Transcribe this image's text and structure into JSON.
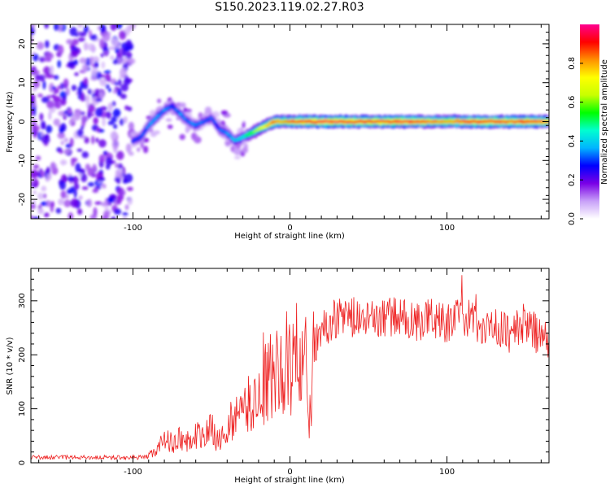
{
  "figure_title": "S150.2023.119.02.27.R03",
  "colors": {
    "snr_line": "#ee2222",
    "axes": "#000000"
  },
  "chart_data": [
    {
      "type": "heatmap",
      "title": "S150.2023.119.02.27.R03",
      "xlabel": "Height of straight line (km)",
      "ylabel": "Frequency (Hz)",
      "xlim": [
        -165,
        165
      ],
      "ylim": [
        -25,
        25
      ],
      "x_ticks": [
        -100,
        0,
        100
      ],
      "x_tick_labels": [
        "-100",
        "0",
        "100"
      ],
      "y_ticks": [
        -20,
        -10,
        0,
        10,
        20
      ],
      "y_tick_labels": [
        "-20",
        "-10",
        "0",
        "10",
        "20"
      ],
      "colorbar": {
        "label": "Normalized spectral amplitude",
        "range": [
          0,
          1
        ],
        "ticks": [
          0.0,
          0.2,
          0.4,
          0.6,
          0.8
        ],
        "tick_labels": [
          "0.0",
          "0.2",
          "0.4",
          "0.6",
          "0.8"
        ],
        "colormap": [
          "#ffffff",
          "#c8a0f8",
          "#7a00e6",
          "#0000ff",
          "#00b4ff",
          "#00ffd0",
          "#00ff00",
          "#c8ff00",
          "#ffff00",
          "#ff9000",
          "#ff0000",
          "#ff0090"
        ]
      },
      "ridge_trace": {
        "description_values": "peak frequency (Hz) vs height (km)",
        "x": [
          -100,
          -95,
          -90,
          -85,
          -80,
          -75,
          -70,
          -65,
          -60,
          -55,
          -50,
          -45,
          -40,
          -35,
          -30,
          -25,
          -20,
          -15,
          -10,
          -5,
          0,
          10,
          20,
          30,
          40,
          50,
          60,
          70,
          80,
          90,
          100,
          110,
          120,
          130,
          140,
          150,
          160,
          165
        ],
        "y": [
          -5,
          -4,
          -1,
          1,
          3,
          4,
          2,
          0,
          -1,
          0,
          1,
          -2,
          -3,
          -5,
          -4,
          -3,
          -2,
          -1,
          0,
          0,
          0,
          0,
          0,
          0,
          0,
          0,
          0,
          0,
          0,
          0,
          0,
          0,
          0,
          0,
          0,
          0,
          0,
          0
        ],
        "amplitude": [
          0.3,
          0.3,
          0.35,
          0.35,
          0.35,
          0.3,
          0.35,
          0.3,
          0.35,
          0.3,
          0.3,
          0.3,
          0.35,
          0.4,
          0.45,
          0.55,
          0.65,
          0.75,
          0.85,
          0.8,
          0.85,
          0.9,
          0.95,
          0.95,
          0.9,
          0.9,
          0.9,
          0.95,
          0.9,
          0.85,
          0.8,
          0.85,
          0.9,
          0.9,
          0.85,
          0.9,
          0.85,
          0.8
        ]
      },
      "noise_region": {
        "x_range": [
          -165,
          -100
        ],
        "amplitude": 0.1
      }
    },
    {
      "type": "line",
      "xlabel": "Height of straight line (km)",
      "ylabel": "SNR (10 * v/v)",
      "xlim": [
        -165,
        165
      ],
      "ylim": [
        0,
        360
      ],
      "x_ticks": [
        -100,
        0,
        100
      ],
      "x_tick_labels": [
        "-100",
        "0",
        "100"
      ],
      "y_ticks": [
        0,
        100,
        200,
        300
      ],
      "y_tick_labels": [
        "0",
        "100",
        "200",
        "300"
      ],
      "series": [
        {
          "color": "#ee2222",
          "x": [
            -165,
            -150,
            -130,
            -110,
            -95,
            -90,
            -85,
            -80,
            -75,
            -70,
            -65,
            -60,
            -55,
            -50,
            -45,
            -40,
            -35,
            -30,
            -25,
            -20,
            -15,
            -10,
            -5,
            0,
            5,
            10,
            12,
            15,
            20,
            25,
            30,
            40,
            50,
            60,
            70,
            80,
            90,
            100,
            110,
            120,
            130,
            140,
            150,
            160,
            165
          ],
          "y": [
            10,
            10,
            10,
            10,
            10,
            12,
            25,
            40,
            40,
            45,
            40,
            50,
            50,
            60,
            40,
            60,
            90,
            90,
            110,
            120,
            150,
            160,
            170,
            190,
            200,
            180,
            50,
            210,
            240,
            260,
            270,
            270,
            260,
            270,
            270,
            260,
            270,
            260,
            270,
            260,
            250,
            240,
            260,
            230,
            220
          ]
        }
      ]
    }
  ]
}
